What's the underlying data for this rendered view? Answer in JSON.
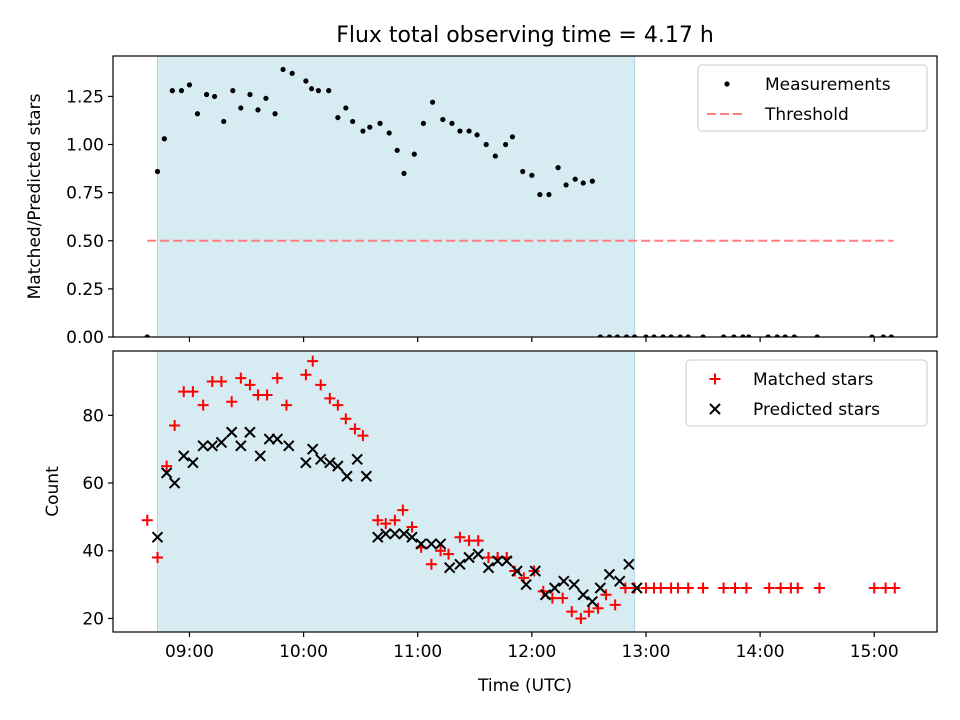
{
  "colors": {
    "shade": "#add8e6",
    "threshold": "#ff7f7f",
    "matched": "#ff0000",
    "predicted": "#000000",
    "measurement": "#000000"
  },
  "chart_data": [
    {
      "type": "scatter",
      "title": "Flux total observing time = 4.17 h",
      "xlabel": "",
      "ylabel": "Matched/Predicted stars",
      "xlim": [
        8.33,
        15.55
      ],
      "ylim": [
        0,
        1.46
      ],
      "yticks": [
        0.0,
        0.25,
        0.5,
        0.75,
        1.0,
        1.25
      ],
      "ytick_labels": [
        "0.00",
        "0.25",
        "0.50",
        "0.75",
        "1.00",
        "1.25"
      ],
      "shaded_interval": [
        8.72,
        12.9
      ],
      "threshold": {
        "name": "Threshold",
        "y": 0.5,
        "x_range": [
          8.63,
          15.17
        ]
      },
      "legend": [
        "Measurements",
        "Threshold"
      ],
      "legend_position": "upper right",
      "series": [
        {
          "name": "Measurements",
          "x": [
            8.63,
            8.72,
            8.78,
            8.85,
            8.93,
            9.0,
            9.07,
            9.15,
            9.22,
            9.3,
            9.38,
            9.45,
            9.53,
            9.6,
            9.67,
            9.75,
            9.82,
            9.9,
            10.02,
            10.07,
            10.13,
            10.22,
            10.3,
            10.37,
            10.43,
            10.52,
            10.58,
            10.67,
            10.75,
            10.82,
            10.88,
            10.97,
            11.05,
            11.13,
            11.22,
            11.3,
            11.37,
            11.45,
            11.52,
            11.6,
            11.68,
            11.77,
            11.83,
            11.92,
            12.0,
            12.07,
            12.15,
            12.23,
            12.3,
            12.38,
            12.45,
            12.53,
            12.6,
            12.68,
            12.75,
            12.83,
            12.9,
            13.0,
            13.07,
            13.15,
            13.22,
            13.3,
            13.37,
            13.5,
            13.68,
            13.77,
            13.85,
            13.9,
            14.07,
            14.15,
            14.22,
            14.3,
            14.5,
            14.98,
            15.08,
            15.15
          ],
          "y": [
            0.0,
            0.86,
            1.03,
            1.28,
            1.28,
            1.31,
            1.16,
            1.26,
            1.25,
            1.12,
            1.28,
            1.19,
            1.26,
            1.18,
            1.24,
            1.16,
            1.39,
            1.37,
            1.33,
            1.29,
            1.28,
            1.28,
            1.14,
            1.19,
            1.12,
            1.07,
            1.09,
            1.11,
            1.06,
            0.97,
            0.85,
            0.95,
            1.11,
            1.22,
            1.13,
            1.11,
            1.07,
            1.07,
            1.05,
            1.0,
            0.94,
            1.0,
            1.04,
            0.86,
            0.84,
            0.74,
            0.74,
            0.88,
            0.79,
            0.82,
            0.8,
            0.81,
            0.0,
            0.0,
            0.0,
            0.0,
            0.0,
            0.0,
            0.0,
            0.0,
            0.0,
            0.0,
            0.0,
            0.0,
            0.0,
            0.0,
            0.0,
            0.0,
            0.0,
            0.0,
            0.0,
            0.0,
            0.0,
            0.0,
            0.0,
            0.0
          ]
        }
      ]
    },
    {
      "type": "scatter",
      "title": "",
      "xlabel": "Time (UTC)",
      "ylabel": "Count",
      "xlim": [
        8.33,
        15.55
      ],
      "ylim": [
        16,
        99
      ],
      "yticks": [
        20,
        40,
        60,
        80
      ],
      "ytick_labels": [
        "20",
        "40",
        "60",
        "80"
      ],
      "xticks": [
        9,
        10,
        11,
        12,
        13,
        14,
        15
      ],
      "xtick_labels": [
        "09:00",
        "10:00",
        "11:00",
        "12:00",
        "13:00",
        "14:00",
        "15:00"
      ],
      "shaded_interval": [
        8.72,
        12.9
      ],
      "legend": [
        "Matched stars",
        "Predicted stars"
      ],
      "legend_position": "upper right",
      "series": [
        {
          "name": "Matched stars",
          "marker": "+",
          "x": [
            8.63,
            8.72,
            8.8,
            8.87,
            8.95,
            9.03,
            9.12,
            9.2,
            9.28,
            9.37,
            9.45,
            9.53,
            9.6,
            9.68,
            9.77,
            9.85,
            10.02,
            10.08,
            10.15,
            10.23,
            10.3,
            10.37,
            10.45,
            10.52,
            10.65,
            10.72,
            10.8,
            10.87,
            10.95,
            11.03,
            11.12,
            11.2,
            11.27,
            11.37,
            11.45,
            11.53,
            11.62,
            11.7,
            11.78,
            11.85,
            11.93,
            12.02,
            12.1,
            12.18,
            12.27,
            12.35,
            12.43,
            12.5,
            12.58,
            12.65,
            12.73,
            12.82,
            12.9,
            13.0,
            13.07,
            13.13,
            13.22,
            13.28,
            13.37,
            13.5,
            13.68,
            13.78,
            13.88,
            14.08,
            14.18,
            14.27,
            14.33,
            14.52,
            15.0,
            15.1,
            15.18
          ],
          "y": [
            49,
            38,
            65,
            77,
            87,
            87,
            83,
            90,
            90,
            84,
            91,
            89,
            86,
            86,
            91,
            83,
            92,
            96,
            89,
            85,
            83,
            79,
            76,
            74,
            49,
            48,
            49,
            52,
            47,
            41,
            36,
            40,
            39,
            44,
            43,
            43,
            38,
            38,
            38,
            34,
            32,
            34,
            28,
            26,
            26,
            22,
            20,
            22,
            23,
            27,
            24,
            29,
            29,
            29,
            29,
            29,
            29,
            29,
            29,
            29,
            29,
            29,
            29,
            29,
            29,
            29,
            29,
            29,
            29,
            29,
            29
          ]
        },
        {
          "name": "Predicted stars",
          "marker": "x",
          "x": [
            8.72,
            8.8,
            8.87,
            8.95,
            9.03,
            9.12,
            9.2,
            9.28,
            9.37,
            9.45,
            9.53,
            9.62,
            9.7,
            9.77,
            9.87,
            10.02,
            10.08,
            10.15,
            10.23,
            10.3,
            10.38,
            10.47,
            10.55,
            10.65,
            10.72,
            10.8,
            10.88,
            10.95,
            11.03,
            11.12,
            11.2,
            11.28,
            11.37,
            11.45,
            11.53,
            11.62,
            11.7,
            11.78,
            11.87,
            11.95,
            12.03,
            12.12,
            12.2,
            12.28,
            12.37,
            12.45,
            12.53,
            12.6,
            12.68,
            12.77,
            12.85,
            12.92
          ],
          "y": [
            44,
            63,
            60,
            68,
            66,
            71,
            71,
            72,
            75,
            71,
            75,
            68,
            73,
            73,
            71,
            66,
            70,
            67,
            66,
            65,
            62,
            67,
            62,
            44,
            45,
            45,
            45,
            44,
            42,
            42,
            42,
            35,
            36,
            38,
            39,
            35,
            37,
            37,
            34,
            30,
            34,
            27,
            29,
            31,
            30,
            27,
            25,
            29,
            33,
            31,
            36,
            29
          ]
        }
      ]
    }
  ]
}
